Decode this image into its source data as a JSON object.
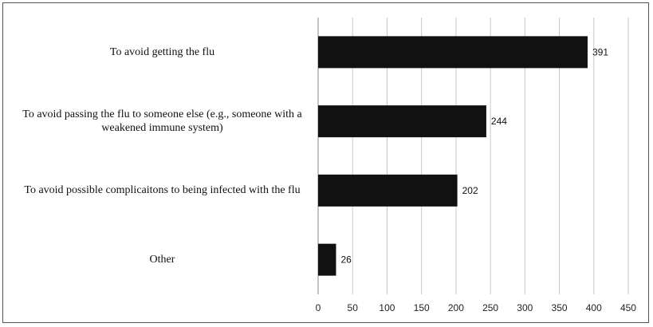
{
  "chart_data": {
    "type": "bar",
    "orientation": "horizontal",
    "title": "",
    "xlabel": "",
    "ylabel": "",
    "categories": [
      "To avoid getting the flu",
      "To avoid passing the flu to someone else (e.g., someone with a weakened immune system)",
      "To avoid possible complicaitons to being infected with the flu",
      "Other"
    ],
    "values": [
      391,
      244,
      202,
      26
    ],
    "value_labels": [
      "391",
      "244",
      "202",
      "26"
    ],
    "xlim": [
      0,
      450
    ],
    "xticks": [
      0,
      50,
      100,
      150,
      200,
      250,
      300,
      350,
      400,
      450
    ],
    "xtick_labels": [
      "0",
      "50",
      "100",
      "150",
      "200",
      "250",
      "300",
      "350",
      "400",
      "450"
    ],
    "grid": "vertical",
    "legend": "none",
    "colors": {
      "bar": "#111111",
      "grid": "#c8c8c8",
      "axis": "#888888"
    }
  }
}
